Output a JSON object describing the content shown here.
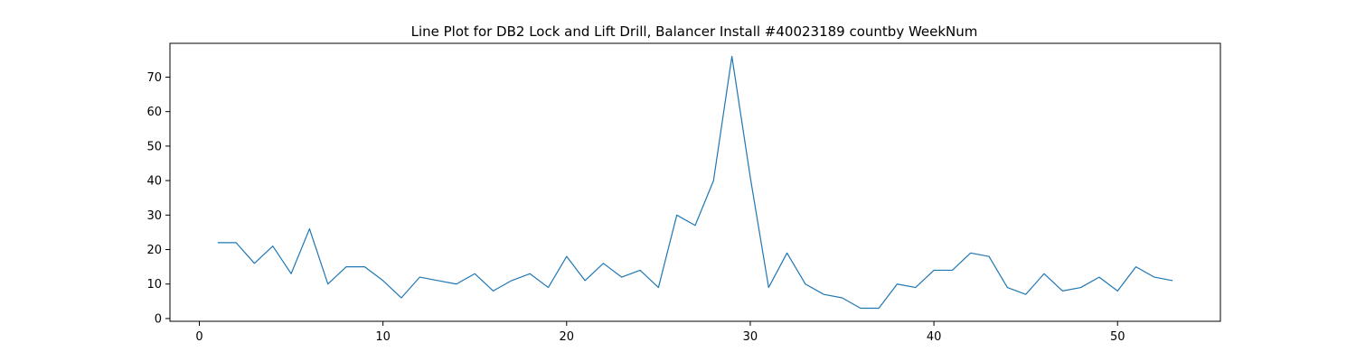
{
  "chart_data": {
    "type": "line",
    "title": "Line Plot for DB2 Lock and Lift Drill, Balancer Install #40023189 countby WeekNum",
    "xlabel": "",
    "ylabel": "",
    "xlim": [
      -1.6,
      55.6
    ],
    "ylim": [
      -0.8,
      79.8
    ],
    "x_ticks": [
      0,
      10,
      20,
      30,
      40,
      50
    ],
    "y_ticks": [
      0,
      10,
      20,
      30,
      40,
      50,
      60,
      70
    ],
    "grid": false,
    "legend": "none",
    "series": [
      {
        "color": "#1f77b4",
        "x": [
          1,
          2,
          3,
          4,
          5,
          6,
          7,
          8,
          9,
          10,
          11,
          12,
          13,
          14,
          15,
          16,
          17,
          18,
          19,
          20,
          21,
          22,
          23,
          24,
          25,
          26,
          27,
          28,
          29,
          30,
          31,
          32,
          33,
          34,
          35,
          36,
          37,
          38,
          39,
          40,
          41,
          42,
          43,
          44,
          45,
          46,
          47,
          48,
          49,
          50,
          51,
          52,
          53
        ],
        "values": [
          22,
          22,
          16,
          21,
          13,
          26,
          10,
          15,
          15,
          11,
          6,
          12,
          11,
          10,
          13,
          8,
          11,
          13,
          9,
          18,
          11,
          16,
          12,
          14,
          9,
          30,
          27,
          40,
          76,
          41,
          9,
          19,
          10,
          7,
          6,
          3,
          3,
          10,
          9,
          14,
          14,
          19,
          18,
          9,
          7,
          13,
          8,
          9,
          12,
          8,
          15,
          12,
          11
        ]
      }
    ]
  }
}
